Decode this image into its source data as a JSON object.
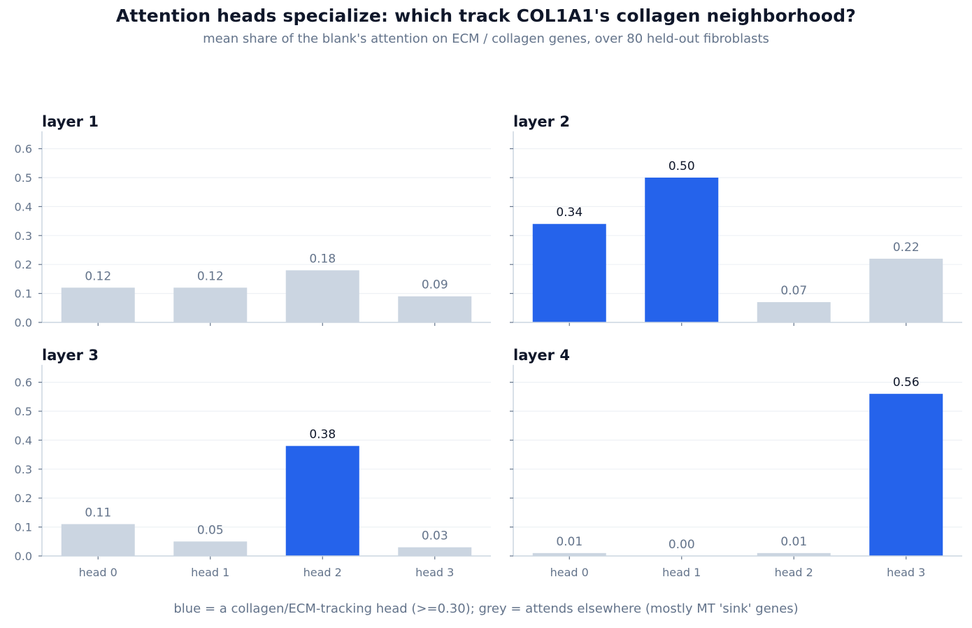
{
  "header": {
    "title": "Attention heads specialize: which track COL1A1's collagen neighborhood?",
    "subtitle": "mean share of the blank's attention on ECM / collagen genes, over 80 held-out fibroblasts"
  },
  "footer": {
    "note": "blue = a collagen/ECM-tracking head (>=0.30);  grey = attends elsewhere (mostly MT 'sink' genes)"
  },
  "colors": {
    "highlight": "#2563eb",
    "muted": "#cbd5e1",
    "highlight_label": "#0f172a",
    "muted_label": "#64748b",
    "axis": "#cbd5e1",
    "grid": "#eef1f5"
  },
  "chart_data": [
    {
      "type": "bar",
      "title": "layer 1",
      "categories": [
        "head 0",
        "head 1",
        "head 2",
        "head 3"
      ],
      "values": [
        0.12,
        0.12,
        0.18,
        0.09
      ],
      "value_labels": [
        "0.12",
        "0.12",
        "0.18",
        "0.09"
      ],
      "yticks": [
        "0.0",
        "0.1",
        "0.2",
        "0.3",
        "0.4",
        "0.5",
        "0.6"
      ],
      "ylim": [
        0,
        0.66
      ],
      "threshold": 0.3,
      "grid": true,
      "show_x_labels": false
    },
    {
      "type": "bar",
      "title": "layer 2",
      "categories": [
        "head 0",
        "head 1",
        "head 2",
        "head 3"
      ],
      "values": [
        0.34,
        0.5,
        0.07,
        0.22
      ],
      "value_labels": [
        "0.34",
        "0.50",
        "0.07",
        "0.22"
      ],
      "yticks": [],
      "ylim": [
        0,
        0.66
      ],
      "threshold": 0.3,
      "grid": true,
      "show_x_labels": false
    },
    {
      "type": "bar",
      "title": "layer 3",
      "categories": [
        "head 0",
        "head 1",
        "head 2",
        "head 3"
      ],
      "values": [
        0.11,
        0.05,
        0.38,
        0.03
      ],
      "value_labels": [
        "0.11",
        "0.05",
        "0.38",
        "0.03"
      ],
      "yticks": [
        "0.0",
        "0.1",
        "0.2",
        "0.3",
        "0.4",
        "0.5",
        "0.6"
      ],
      "ylim": [
        0,
        0.66
      ],
      "threshold": 0.3,
      "grid": true,
      "show_x_labels": true
    },
    {
      "type": "bar",
      "title": "layer 4",
      "categories": [
        "head 0",
        "head 1",
        "head 2",
        "head 3"
      ],
      "values": [
        0.01,
        0.0,
        0.01,
        0.56
      ],
      "value_labels": [
        "0.01",
        "0.00",
        "0.01",
        "0.56"
      ],
      "yticks": [],
      "ylim": [
        0,
        0.66
      ],
      "threshold": 0.3,
      "grid": true,
      "show_x_labels": true
    }
  ]
}
